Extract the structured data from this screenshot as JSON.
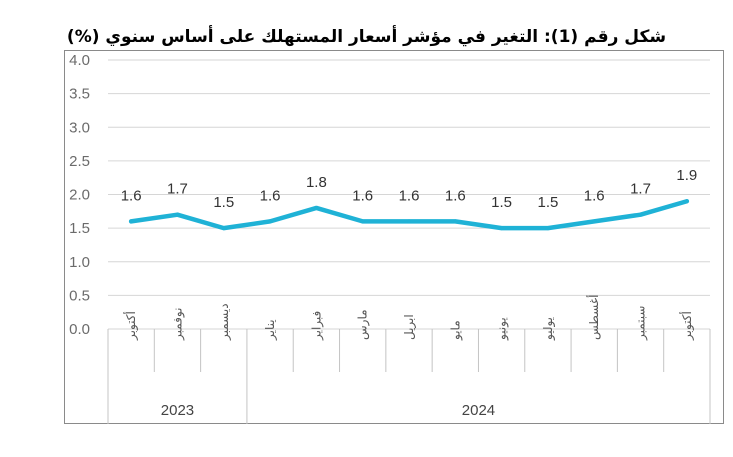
{
  "chart_data": {
    "type": "line",
    "title": "شكل رقم (1): التغير في مؤشر أسعار المستهلك على أساس سنوي (%)",
    "categories": [
      "أكتوبر",
      "نوفمبر",
      "ديسمبر",
      "يناير",
      "فبراير",
      "مارس",
      "ابريل",
      "مايو",
      "يونيو",
      "يوليو",
      "أغسطس",
      "سبتمبر",
      "أكتوبر"
    ],
    "years": [
      {
        "label": "2023",
        "span": 3
      },
      {
        "label": "2024",
        "span": 10
      }
    ],
    "values": [
      1.6,
      1.7,
      1.5,
      1.6,
      1.8,
      1.6,
      1.6,
      1.6,
      1.5,
      1.5,
      1.6,
      1.7,
      1.9
    ],
    "data_labels": [
      "1.6",
      "1.7",
      "1.5",
      "1.6",
      "1.8",
      "1.6",
      "1.6",
      "1.6",
      "1.5",
      "1.5",
      "1.6",
      "1.7",
      "1.9"
    ],
    "yticks": [
      "0.0",
      "0.5",
      "1.0",
      "1.5",
      "2.0",
      "2.5",
      "3.0",
      "3.5",
      "4.0"
    ],
    "ylim": [
      0,
      4
    ],
    "grid": true,
    "line_color": "#1fb2d6",
    "grid_color": "#d6d6d6"
  }
}
